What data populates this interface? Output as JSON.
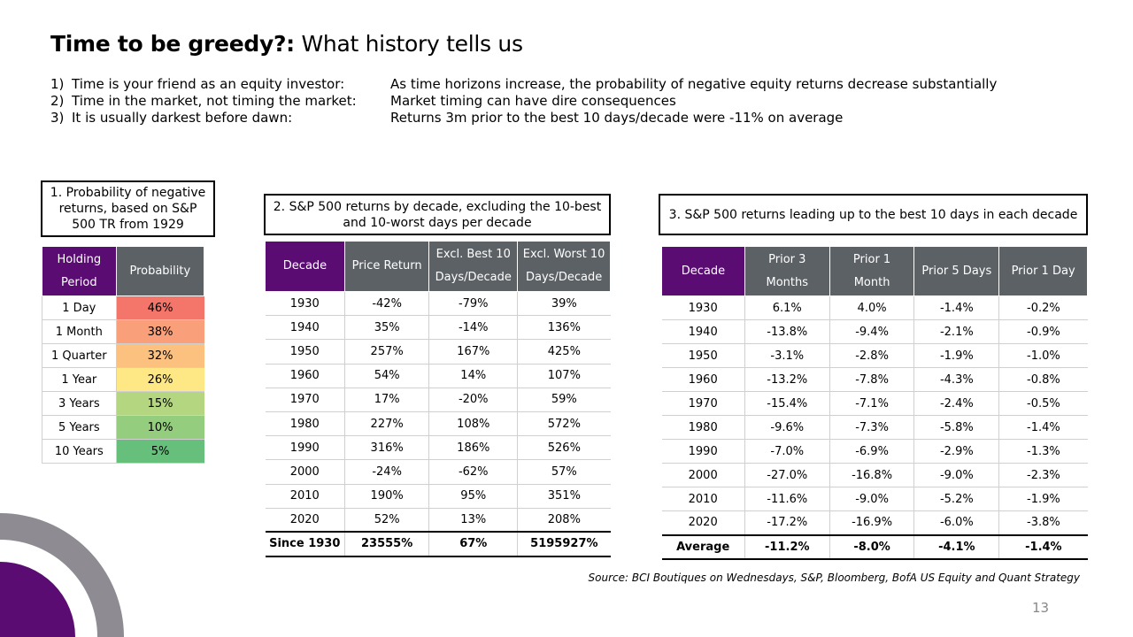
{
  "title": {
    "bold": "Time to be greedy?:",
    "rest": " What history tells us"
  },
  "points": [
    {
      "num": "1)",
      "label": "Time is your friend as an equity investor:",
      "text": "As time horizons increase, the probability of negative equity returns decrease substantially"
    },
    {
      "num": "2)",
      "label": "Time in the market, not timing the market:",
      "text": "Market timing can have dire consequences"
    },
    {
      "num": "3)",
      "label": "It is usually darkest before dawn:",
      "text": "Returns 3m prior to the best 10 days/decade were -11% on average"
    }
  ],
  "table1": {
    "caption": "1. Probability of negative returns, based on S&P 500 TR from 1929",
    "headers": [
      "Holding Period",
      "Probability"
    ],
    "rows": [
      {
        "period": "1 Day",
        "prob": "46%",
        "color": "#f4766b"
      },
      {
        "period": "1 Month",
        "prob": "38%",
        "color": "#f9a07a"
      },
      {
        "period": "1 Quarter",
        "prob": "32%",
        "color": "#fcc07f"
      },
      {
        "period": "1 Year",
        "prob": "26%",
        "color": "#fde885"
      },
      {
        "period": "3 Years",
        "prob": "15%",
        "color": "#b5d680"
      },
      {
        "period": "5 Years",
        "prob": "10%",
        "color": "#93cd7d"
      },
      {
        "period": "10 Years",
        "prob": "5%",
        "color": "#66bf7b"
      }
    ]
  },
  "table2": {
    "caption": "2. S&P 500 returns by decade, excluding the 10-best and 10-worst days per decade",
    "headers": [
      "Decade",
      "Price Return",
      "Excl. Best 10 Days/Decade",
      "Excl. Worst 10 Days/Decade"
    ],
    "rows": [
      [
        "1930",
        "-42%",
        "-79%",
        "39%"
      ],
      [
        "1940",
        "35%",
        "-14%",
        "136%"
      ],
      [
        "1950",
        "257%",
        "167%",
        "425%"
      ],
      [
        "1960",
        "54%",
        "14%",
        "107%"
      ],
      [
        "1970",
        "17%",
        "-20%",
        "59%"
      ],
      [
        "1980",
        "227%",
        "108%",
        "572%"
      ],
      [
        "1990",
        "316%",
        "186%",
        "526%"
      ],
      [
        "2000",
        "-24%",
        "-62%",
        "57%"
      ],
      [
        "2010",
        "190%",
        "95%",
        "351%"
      ],
      [
        "2020",
        "52%",
        "13%",
        "208%"
      ]
    ],
    "total": [
      "Since 1930",
      "23555%",
      "67%",
      "5195927%"
    ]
  },
  "table3": {
    "caption": "3. S&P 500 returns leading up to the best 10 days in each decade",
    "headers": [
      "Decade",
      "Prior 3 Months",
      "Prior 1 Month",
      "Prior 5 Days",
      "Prior 1 Day"
    ],
    "rows": [
      [
        "1930",
        "6.1%",
        "4.0%",
        "-1.4%",
        "-0.2%"
      ],
      [
        "1940",
        "-13.8%",
        "-9.4%",
        "-2.1%",
        "-0.9%"
      ],
      [
        "1950",
        "-3.1%",
        "-2.8%",
        "-1.9%",
        "-1.0%"
      ],
      [
        "1960",
        "-13.2%",
        "-7.8%",
        "-4.3%",
        "-0.8%"
      ],
      [
        "1970",
        "-15.4%",
        "-7.1%",
        "-2.4%",
        "-0.5%"
      ],
      [
        "1980",
        "-9.6%",
        "-7.3%",
        "-5.8%",
        "-1.4%"
      ],
      [
        "1990",
        "-7.0%",
        "-6.9%",
        "-2.9%",
        "-1.3%"
      ],
      [
        "2000",
        "-27.0%",
        "-16.8%",
        "-9.0%",
        "-2.3%"
      ],
      [
        "2010",
        "-11.6%",
        "-9.0%",
        "-5.2%",
        "-1.9%"
      ],
      [
        "2020",
        "-17.2%",
        "-16.9%",
        "-6.0%",
        "-3.8%"
      ]
    ],
    "total": [
      "Average",
      "-11.2%",
      "-8.0%",
      "-4.1%",
      "-1.4%"
    ]
  },
  "source": "Source: BCI Boutiques on Wednesdays, S&P, Bloomberg, BofA US Equity and Quant Strategy",
  "page_number": "13",
  "colors": {
    "purple": "#5a0c73",
    "gray_header": "#5c6166",
    "deco_ring": "#8e8c92"
  }
}
